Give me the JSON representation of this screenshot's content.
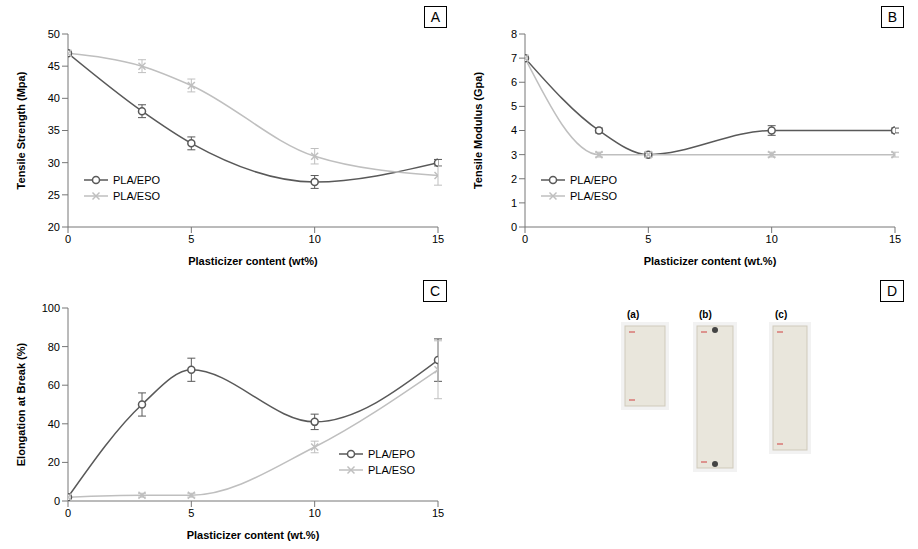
{
  "chart_data": [
    {
      "panel": "A",
      "type": "line",
      "x_label": "Plasticizer content (wt%)",
      "y_label": "Tensile Strength (Mpa)",
      "x": [
        0,
        3,
        5,
        10,
        15
      ],
      "xlim": [
        0,
        15
      ],
      "xticks": [
        0,
        5,
        10,
        15
      ],
      "ylim": [
        20,
        50
      ],
      "yticks": [
        20,
        25,
        30,
        35,
        40,
        45,
        50
      ],
      "grid": false,
      "legend": "lower left",
      "series": [
        {
          "name": "PLA/EPO",
          "color": "#595959",
          "marker": "circle",
          "line_style": "solid",
          "values": [
            47,
            38,
            33,
            27,
            30
          ],
          "errors": [
            0,
            1,
            1,
            1,
            0.5
          ]
        },
        {
          "name": "PLA/ESO",
          "color": "#bfbfbf",
          "marker": "x",
          "line_style": "solid",
          "values": [
            47,
            45,
            42,
            31,
            28
          ],
          "errors": [
            0,
            1,
            1,
            1.2,
            1.5
          ]
        }
      ]
    },
    {
      "panel": "B",
      "type": "line",
      "x_label": "Plasticizer content (wt.%)",
      "y_label": "Tensile Modulus (Gpa)",
      "x": [
        0,
        3,
        5,
        10,
        15
      ],
      "xlim": [
        0,
        15
      ],
      "xticks": [
        0,
        5,
        10,
        15
      ],
      "ylim": [
        0,
        8
      ],
      "yticks": [
        0,
        1,
        2,
        3,
        4,
        5,
        6,
        7,
        8
      ],
      "grid": false,
      "legend": "lower left",
      "series": [
        {
          "name": "PLA/EPO",
          "color": "#595959",
          "marker": "circle",
          "line_style": "solid",
          "values": [
            7,
            4,
            3,
            4,
            4
          ],
          "errors": [
            0,
            0.1,
            0.1,
            0.2,
            0.1
          ]
        },
        {
          "name": "PLA/ESO",
          "color": "#bfbfbf",
          "marker": "x",
          "line_style": "solid",
          "values": [
            7,
            3,
            3,
            3,
            3
          ],
          "errors": [
            0,
            0.1,
            0.1,
            0.1,
            0.1
          ]
        }
      ]
    },
    {
      "panel": "C",
      "type": "line",
      "x_label": "Plasticizer content (wt.%)",
      "y_label": "Elongation at Break (%)",
      "x": [
        0,
        3,
        5,
        10,
        15
      ],
      "xlim": [
        0,
        15
      ],
      "xticks": [
        0,
        5,
        10,
        15
      ],
      "ylim": [
        0,
        100
      ],
      "yticks": [
        0,
        20,
        40,
        60,
        80,
        100
      ],
      "grid": false,
      "legend": "lower right",
      "series": [
        {
          "name": "PLA/EPO",
          "color": "#595959",
          "marker": "circle",
          "line_style": "solid",
          "values": [
            2,
            50,
            68,
            41,
            73
          ],
          "errors": [
            0,
            6,
            6,
            4,
            11
          ]
        },
        {
          "name": "PLA/ESO",
          "color": "#bfbfbf",
          "marker": "x",
          "line_style": "solid",
          "values": [
            2,
            3,
            3,
            28,
            68
          ],
          "errors": [
            0,
            1,
            1,
            3,
            15
          ]
        }
      ]
    },
    {
      "panel": "D",
      "type": "image",
      "labels": [
        "(a)",
        "(b)",
        "(c)"
      ]
    }
  ]
}
